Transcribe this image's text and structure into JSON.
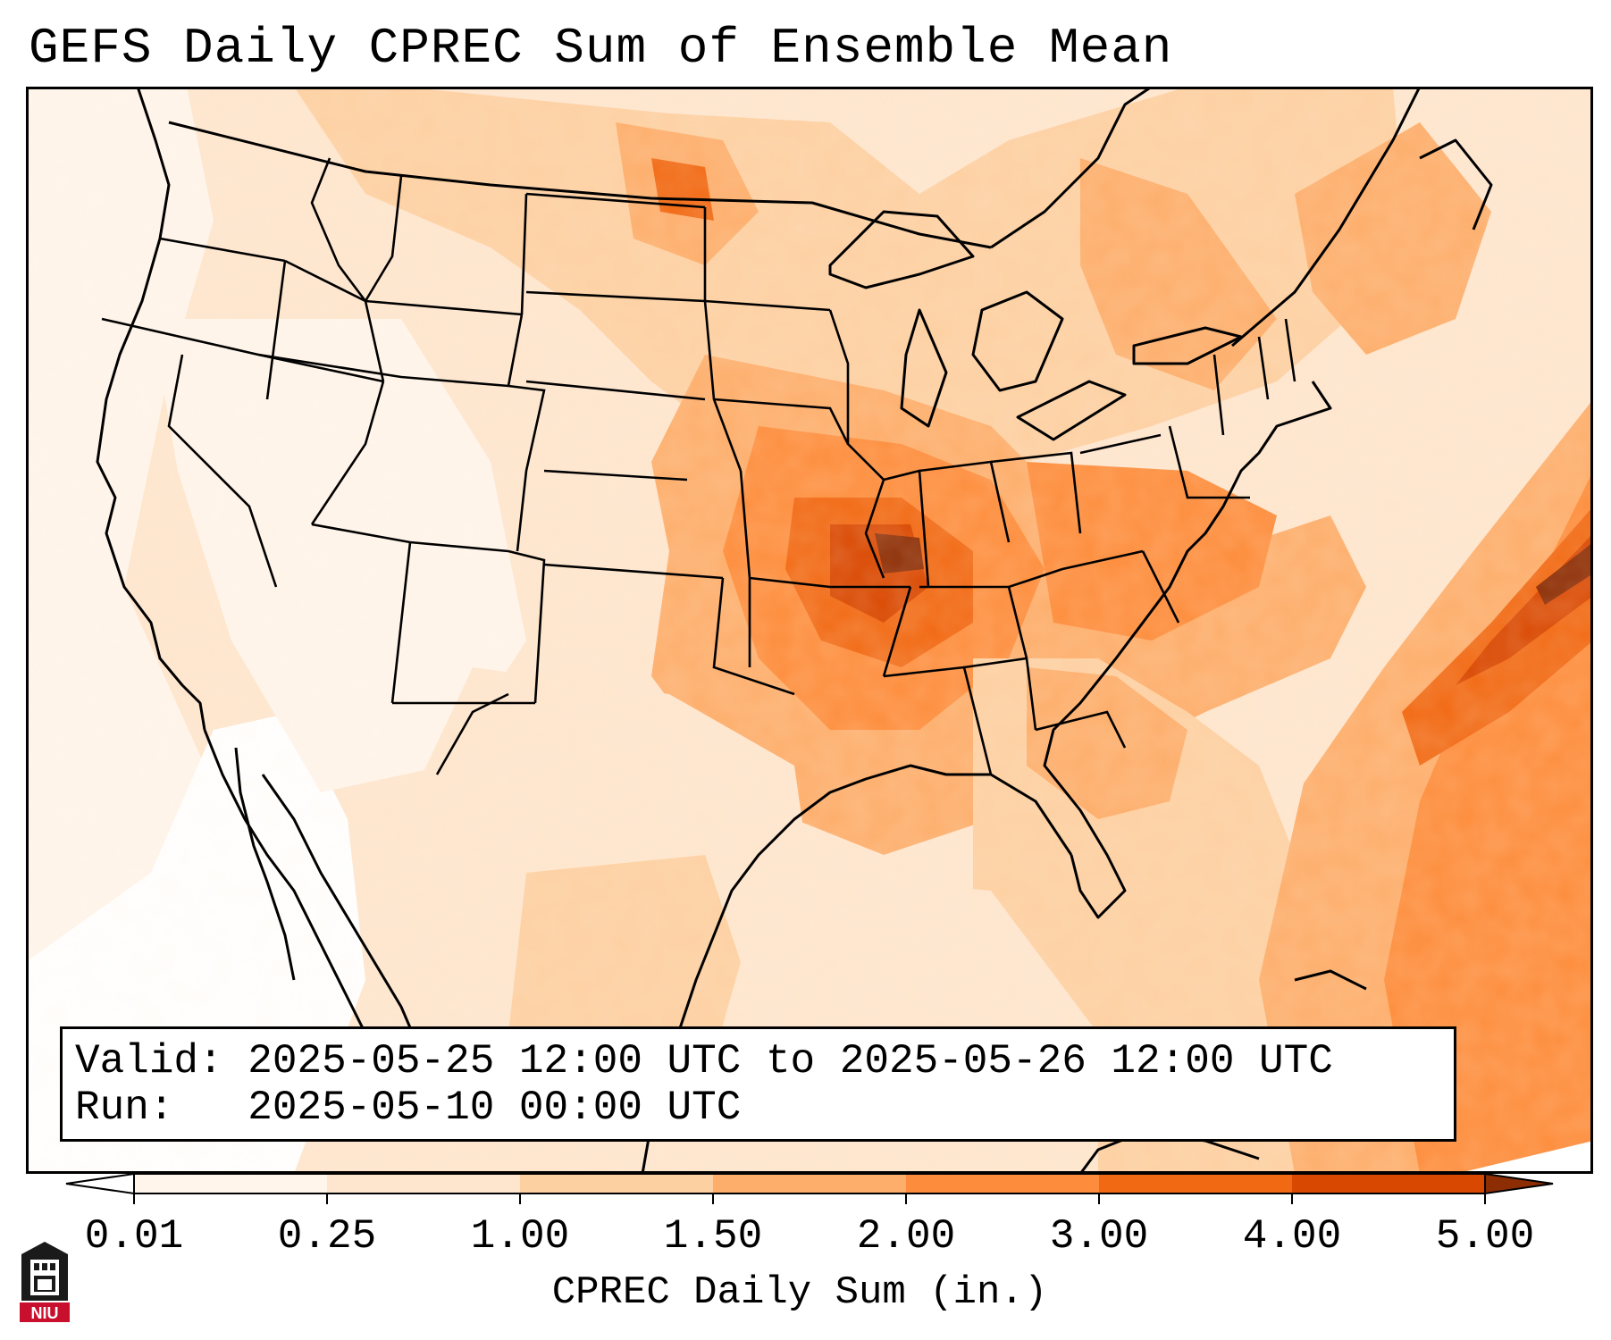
{
  "title": "GEFS Daily CPREC Sum of Ensemble Mean",
  "info": {
    "valid_label": "Valid:",
    "valid_value": "2025-05-25 12:00 UTC to 2025-05-26 12:00 UTC",
    "run_label": "Run:",
    "run_value": "2025-05-10 00:00 UTC"
  },
  "colorbar": {
    "label": "CPREC Daily Sum (in.)",
    "ticks": [
      "0.01",
      "0.25",
      "1.00",
      "1.50",
      "2.00",
      "3.00",
      "4.00",
      "5.00"
    ],
    "colors": [
      "#fff5eb",
      "#fee6ce",
      "#fdd0a2",
      "#fdae6b",
      "#fd8d3c",
      "#f16913",
      "#d94801"
    ],
    "under_color": "#ffffff",
    "over_color": "#8c2d04"
  },
  "logo": {
    "icon": "niu-university-logo",
    "text": "NIU"
  }
}
